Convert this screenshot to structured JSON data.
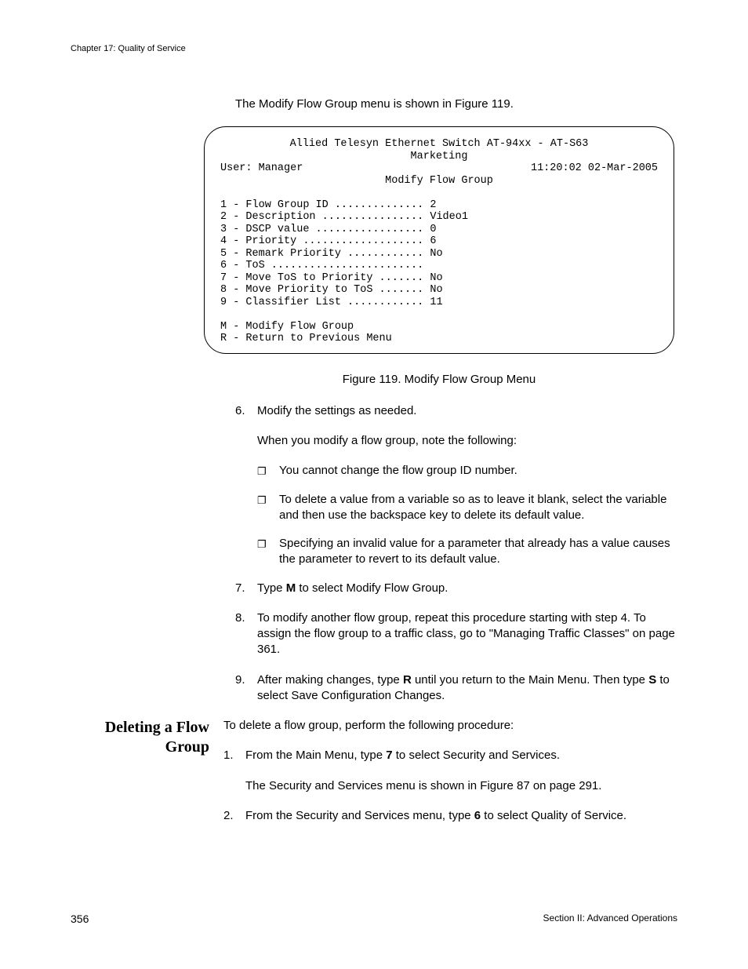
{
  "header": {
    "chapter": "Chapter 17: Quality of Service"
  },
  "intro": "The Modify Flow Group menu is shown in Figure 119.",
  "terminal": {
    "title1": "Allied Telesyn Ethernet Switch AT-94xx - AT-S63",
    "title2": "Marketing",
    "user_left": "User: Manager",
    "user_right": "11:20:02 02-Mar-2005",
    "menu_title": "Modify Flow Group",
    "lines": [
      "1 - Flow Group ID .............. 2",
      "2 - Description ................ Video1",
      "3 - DSCP value ................. 0",
      "4 - Priority ................... 6",
      "5 - Remark Priority ............ No",
      "6 - ToS ........................",
      "7 - Move ToS to Priority ....... No",
      "8 - Move Priority to ToS ....... No",
      "9 - Classifier List ............ 11",
      "",
      "M - Modify Flow Group",
      "R - Return to Previous Menu"
    ]
  },
  "figure_caption": "Figure 119. Modify Flow Group Menu",
  "steps": {
    "s6": {
      "num": "6.",
      "text": "Modify the settings as needed."
    },
    "s6_after": "When you modify a flow group, note the following:",
    "bullets": {
      "b1": "You cannot change the flow group ID number.",
      "b2": "To delete a value from a variable so as to leave it blank, select the variable and then use the backspace key to delete its default value.",
      "b3": "Specifying an invalid value for a parameter that already has a value causes the parameter to revert to its default value."
    },
    "s7": {
      "num": "7.",
      "pre": "Type ",
      "bold": "M",
      "post": " to select Modify Flow Group."
    },
    "s8": {
      "num": "8.",
      "text": "To modify another flow group, repeat this procedure starting with step 4. To assign the flow group to a traffic class, go to \"Managing Traffic Classes\" on page 361."
    },
    "s9": {
      "num": "9.",
      "pre": "After making changes, type ",
      "b1": "R",
      "mid": " until you return to the Main Menu. Then type ",
      "b2": "S",
      "post": " to select Save Configuration Changes."
    }
  },
  "section": {
    "heading": "Deleting a Flow Group",
    "intro": "To delete a flow group, perform the following procedure:",
    "s1": {
      "num": "1.",
      "pre": "From the Main Menu, type ",
      "bold": "7",
      "post": " to select Security and Services."
    },
    "s1_after": "The Security and Services menu is shown in Figure 87 on page 291.",
    "s2": {
      "num": "2.",
      "pre": "From the Security and Services menu, type ",
      "bold": "6",
      "post": " to select Quality of Service."
    }
  },
  "footer": {
    "page": "356",
    "section": "Section II: Advanced Operations"
  }
}
